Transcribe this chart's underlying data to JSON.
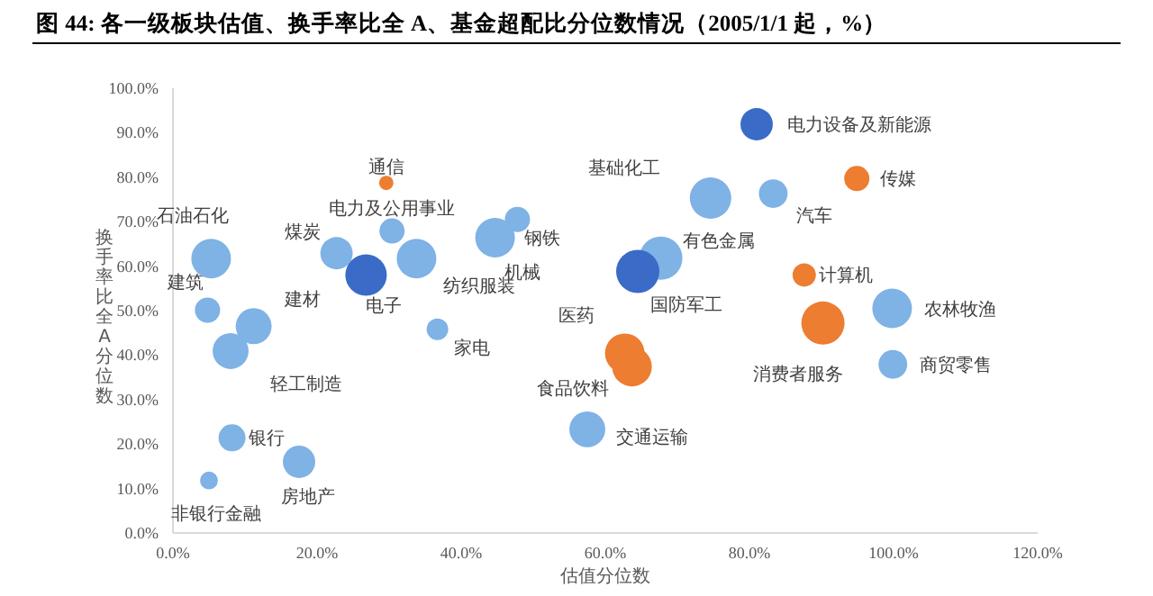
{
  "chart_data": {
    "type": "bubble",
    "title": "图 44: 各一级板块估值、换手率比全 A、基金超配比分位数情况（2005/1/1 起，%）",
    "xlabel": "估值分位数",
    "ylabel": "换手率比全A分位数",
    "xlim": [
      0,
      120
    ],
    "ylim": [
      0,
      100
    ],
    "xticks": [
      {
        "value": 0,
        "label": "0.0%"
      },
      {
        "value": 20,
        "label": "20.0%"
      },
      {
        "value": 40,
        "label": "40.0%"
      },
      {
        "value": 60,
        "label": "60.0%"
      },
      {
        "value": 80,
        "label": "80.0%"
      },
      {
        "value": 100,
        "label": "100.0%"
      },
      {
        "value": 120,
        "label": "120.0%"
      }
    ],
    "yticks": [
      {
        "value": 0,
        "label": "0.0%"
      },
      {
        "value": 10,
        "label": "10.0%"
      },
      {
        "value": 20,
        "label": "20.0%"
      },
      {
        "value": 30,
        "label": "30.0%"
      },
      {
        "value": 40,
        "label": "40.0%"
      },
      {
        "value": 50,
        "label": "50.0%"
      },
      {
        "value": 60,
        "label": "60.0%"
      },
      {
        "value": 70,
        "label": "70.0%"
      },
      {
        "value": 80,
        "label": "80.0%"
      },
      {
        "value": 90,
        "label": "90.0%"
      },
      {
        "value": 100,
        "label": "100.0%"
      }
    ],
    "series": [
      {
        "name": "石油石化",
        "color": "#7fb2e5",
        "x": [
          5.3
        ],
        "values": [
          61.7
        ],
        "sizes": [
          0.84
        ]
      },
      {
        "name": "建筑",
        "color": "#7fb2e5",
        "x": [
          4.8
        ],
        "values": [
          50.1
        ],
        "sizes": [
          0.34
        ]
      },
      {
        "name": "建材",
        "color": "#7fb2e5",
        "x": [
          11.2
        ],
        "values": [
          46.5
        ],
        "sizes": [
          0.69
        ]
      },
      {
        "name": "轻工制造",
        "color": "#7fb2e5",
        "x": [
          8.0
        ],
        "values": [
          40.9
        ],
        "sizes": [
          0.69
        ]
      },
      {
        "name": "煤炭",
        "color": "#7fb2e5",
        "x": [
          22.7
        ],
        "values": [
          62.9
        ],
        "sizes": [
          0.56
        ]
      },
      {
        "name": "电子",
        "color": "#3a6bc6",
        "x": [
          26.8
        ],
        "values": [
          58.0
        ],
        "sizes": [
          0.92
        ]
      },
      {
        "name": "通信",
        "color": "#ed7d31",
        "x": [
          29.6
        ],
        "values": [
          78.7
        ],
        "sizes": [
          0.11
        ]
      },
      {
        "name": "电力及公用事业",
        "color": "#7fb2e5",
        "x": [
          30.4
        ],
        "values": [
          67.9
        ],
        "sizes": [
          0.34
        ]
      },
      {
        "name": "纺织服装",
        "color": "#7fb2e5",
        "x": [
          33.8
        ],
        "values": [
          61.7
        ],
        "sizes": [
          0.84
        ]
      },
      {
        "name": "家电",
        "color": "#7fb2e5",
        "x": [
          36.7
        ],
        "values": [
          45.8
        ],
        "sizes": [
          0.25
        ]
      },
      {
        "name": "机械",
        "color": "#7fb2e5",
        "x": [
          44.7
        ],
        "values": [
          66.4
        ],
        "sizes": [
          0.84
        ]
      },
      {
        "name": "钢铁",
        "color": "#7fb2e5",
        "x": [
          47.8
        ],
        "values": [
          70.5
        ],
        "sizes": [
          0.34
        ]
      },
      {
        "name": "基础化工",
        "color": "#7fb2e5",
        "x": [
          74.6
        ],
        "values": [
          75.3
        ],
        "sizes": [
          0.92
        ]
      },
      {
        "name": "电力设备及新能源",
        "color": "#3a6bc6",
        "x": [
          81.0
        ],
        "values": [
          91.9
        ],
        "sizes": [
          0.56
        ]
      },
      {
        "name": "汽车",
        "color": "#7fb2e5",
        "x": [
          83.3
        ],
        "values": [
          76.3
        ],
        "sizes": [
          0.44
        ]
      },
      {
        "name": "传媒",
        "color": "#ed7d31",
        "x": [
          94.9
        ],
        "values": [
          79.7
        ],
        "sizes": [
          0.34
        ]
      },
      {
        "name": "有色金属",
        "color": "#7fb2e5",
        "x": [
          67.7
        ],
        "values": [
          61.8
        ],
        "sizes": [
          1
        ]
      },
      {
        "name": "国防军工",
        "color": "#3a6bc6",
        "x": [
          64.5
        ],
        "values": [
          58.8
        ],
        "sizes": [
          1
        ]
      },
      {
        "name": "医药",
        "color": "#ed7d31",
        "x": [
          62.7
        ],
        "values": [
          40.4
        ],
        "sizes": [
          0.84
        ]
      },
      {
        "name": "食品饮料",
        "color": "#ed7d31",
        "x": [
          63.7
        ],
        "values": [
          37.4
        ],
        "sizes": [
          0.84
        ]
      },
      {
        "name": "交通运输",
        "color": "#7fb2e5",
        "x": [
          57.5
        ],
        "values": [
          23.3
        ],
        "sizes": [
          0.69
        ]
      },
      {
        "name": "计算机",
        "color": "#ed7d31",
        "x": [
          87.6
        ],
        "values": [
          58.0
        ],
        "sizes": [
          0.29
        ]
      },
      {
        "name": "农林牧渔",
        "color": "#7fb2e5",
        "x": [
          99.8
        ],
        "values": [
          50.5
        ],
        "sizes": [
          0.84
        ]
      },
      {
        "name": "消费者服务",
        "color": "#ed7d31",
        "x": [
          90.2
        ],
        "values": [
          47.2
        ],
        "sizes": [
          1
        ]
      },
      {
        "name": "商贸零售",
        "color": "#7fb2e5",
        "x": [
          99.9
        ],
        "values": [
          37.9
        ],
        "sizes": [
          0.44
        ]
      },
      {
        "name": "银行",
        "color": "#7fb2e5",
        "x": [
          8.2
        ],
        "values": [
          21.4
        ],
        "sizes": [
          0.39
        ]
      },
      {
        "name": "房地产",
        "color": "#7fb2e5",
        "x": [
          17.5
        ],
        "values": [
          16.0
        ],
        "sizes": [
          0.56
        ]
      },
      {
        "name": "非银行金融",
        "color": "#7fb2e5",
        "x": [
          5.0
        ],
        "values": [
          11.8
        ],
        "sizes": [
          0.17
        ]
      }
    ]
  }
}
